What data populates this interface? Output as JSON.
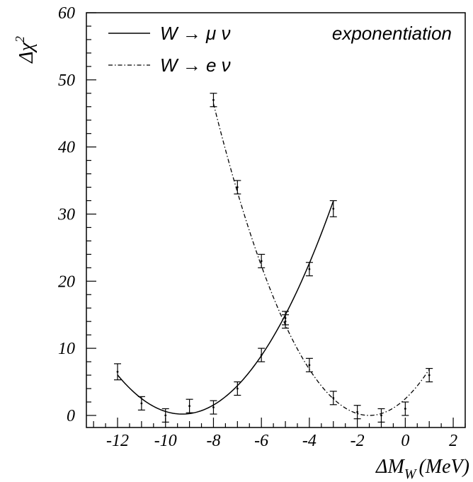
{
  "chart_data": {
    "type": "line",
    "xlabel": "ΔM",
    "xlabel_sub": "W",
    "xlabel_unit": "(MeV)",
    "ylabel": "Δχ",
    "ylabel_sup": "2",
    "xlim": [
      -13.3,
      2.5
    ],
    "ylim": [
      -1.8,
      60
    ],
    "xticks": [
      -12,
      -10,
      -8,
      -6,
      -4,
      -2,
      0,
      2
    ],
    "xtick_labels": [
      "-12",
      "-10",
      "-8",
      "-6",
      "-4",
      "-2",
      "0",
      "2"
    ],
    "yticks": [
      0,
      10,
      20,
      30,
      40,
      50,
      60
    ],
    "ytick_labels": [
      "0",
      "10",
      "20",
      "30",
      "40",
      "50",
      "60"
    ],
    "grid": false,
    "legend_position": "top-left",
    "annotation": "exponentiation",
    "series": [
      {
        "name": "W → μ ν",
        "style": "solid",
        "points": [
          {
            "x": -12,
            "y": 6.5,
            "err": 1.2
          },
          {
            "x": -11,
            "y": 1.8,
            "err": 1.0
          },
          {
            "x": -10,
            "y": 0.0,
            "err": 1.0
          },
          {
            "x": -9,
            "y": 1.4,
            "err": 1.0
          },
          {
            "x": -8,
            "y": 1.2,
            "err": 1.0
          },
          {
            "x": -7,
            "y": 4.0,
            "err": 1.0
          },
          {
            "x": -6,
            "y": 9.0,
            "err": 1.0
          },
          {
            "x": -5,
            "y": 14.0,
            "err": 1.0
          },
          {
            "x": -4,
            "y": 21.8,
            "err": 1.0
          },
          {
            "x": -3,
            "y": 30.8,
            "err": 1.2
          }
        ],
        "fit": {
          "form": "quadratic",
          "vertex_x": -9.3,
          "vertex_y": 0.2,
          "curvature": 0.8
        }
      },
      {
        "name": "W → e ν",
        "style": "dash-dot",
        "points": [
          {
            "x": -8,
            "y": 47.0,
            "err": 1.0
          },
          {
            "x": -7,
            "y": 34.0,
            "err": 1.0
          },
          {
            "x": -6,
            "y": 23.0,
            "err": 1.0
          },
          {
            "x": -5,
            "y": 14.5,
            "err": 1.0
          },
          {
            "x": -4,
            "y": 7.5,
            "err": 1.0
          },
          {
            "x": -3,
            "y": 2.6,
            "err": 1.0
          },
          {
            "x": -2,
            "y": 0.5,
            "err": 1.0
          },
          {
            "x": -1,
            "y": 0.0,
            "err": 1.0
          },
          {
            "x": 0,
            "y": 1.0,
            "err": 1.0
          },
          {
            "x": 1,
            "y": 6.0,
            "err": 1.0
          }
        ],
        "fit": {
          "form": "quadratic",
          "vertex_x": -1.5,
          "vertex_y": 0.0,
          "curvature": 1.1
        }
      }
    ]
  }
}
